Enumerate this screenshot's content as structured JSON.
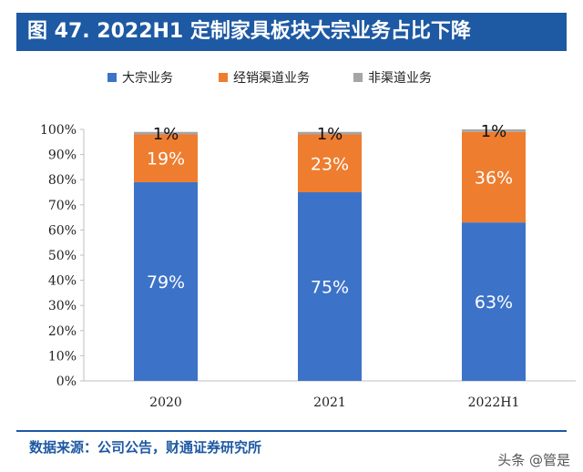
{
  "header": {
    "title": "图 47. 2022H1 定制家具板块大宗业务占比下降"
  },
  "footer": {
    "source": "数据来源：公司公告，财通证券研究所",
    "watermark": "头条 @管是"
  },
  "colors": {
    "title_bg": "#1e59a3",
    "series": [
      "#3c73c8",
      "#ee7d2f",
      "#a5a5a5"
    ]
  },
  "chart_data": {
    "type": "bar",
    "stacked": true,
    "categories": [
      "2020",
      "2021",
      "2022H1"
    ],
    "series": [
      {
        "name": "大宗业务",
        "values": [
          79,
          75,
          63
        ],
        "labels": [
          "79%",
          "75%",
          "63%"
        ]
      },
      {
        "name": "经销渠道业务",
        "values": [
          19,
          23,
          36
        ],
        "labels": [
          "19%",
          "23%",
          "36%"
        ]
      },
      {
        "name": "非渠道业务",
        "values": [
          1,
          1,
          1
        ],
        "labels": [
          "1%",
          "1%",
          "1%"
        ]
      }
    ],
    "ylim": [
      0,
      100
    ],
    "yticks": [
      "0%",
      "10%",
      "20%",
      "30%",
      "40%",
      "50%",
      "60%",
      "70%",
      "80%",
      "90%",
      "100%"
    ],
    "legend_position": "top",
    "grid": false
  }
}
